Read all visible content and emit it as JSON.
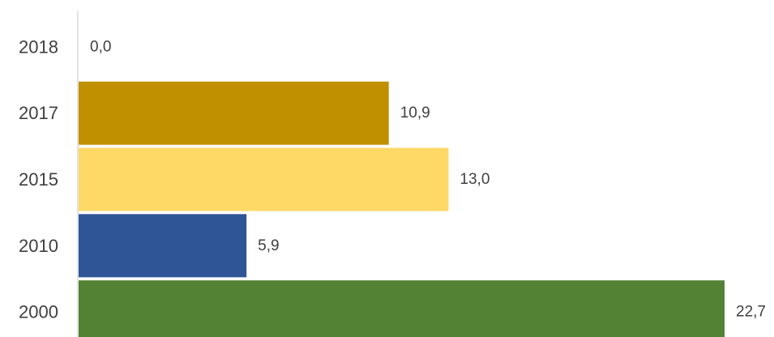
{
  "chart_data": {
    "type": "bar",
    "orientation": "horizontal",
    "categories": [
      "2018",
      "2017",
      "2015",
      "2010",
      "2000"
    ],
    "values": [
      0.0,
      10.9,
      13.0,
      5.9,
      22.7
    ],
    "value_labels": [
      "0,0",
      "10,9",
      "13,0",
      "5,9",
      "22,7"
    ],
    "colors": [
      "#c09000",
      "#c09000",
      "#ffd966",
      "#2f5597",
      "#548235"
    ],
    "title": "",
    "xlabel": "",
    "ylabel": "",
    "xlim": [
      0,
      22.7
    ],
    "grid": false,
    "legend": "none"
  }
}
